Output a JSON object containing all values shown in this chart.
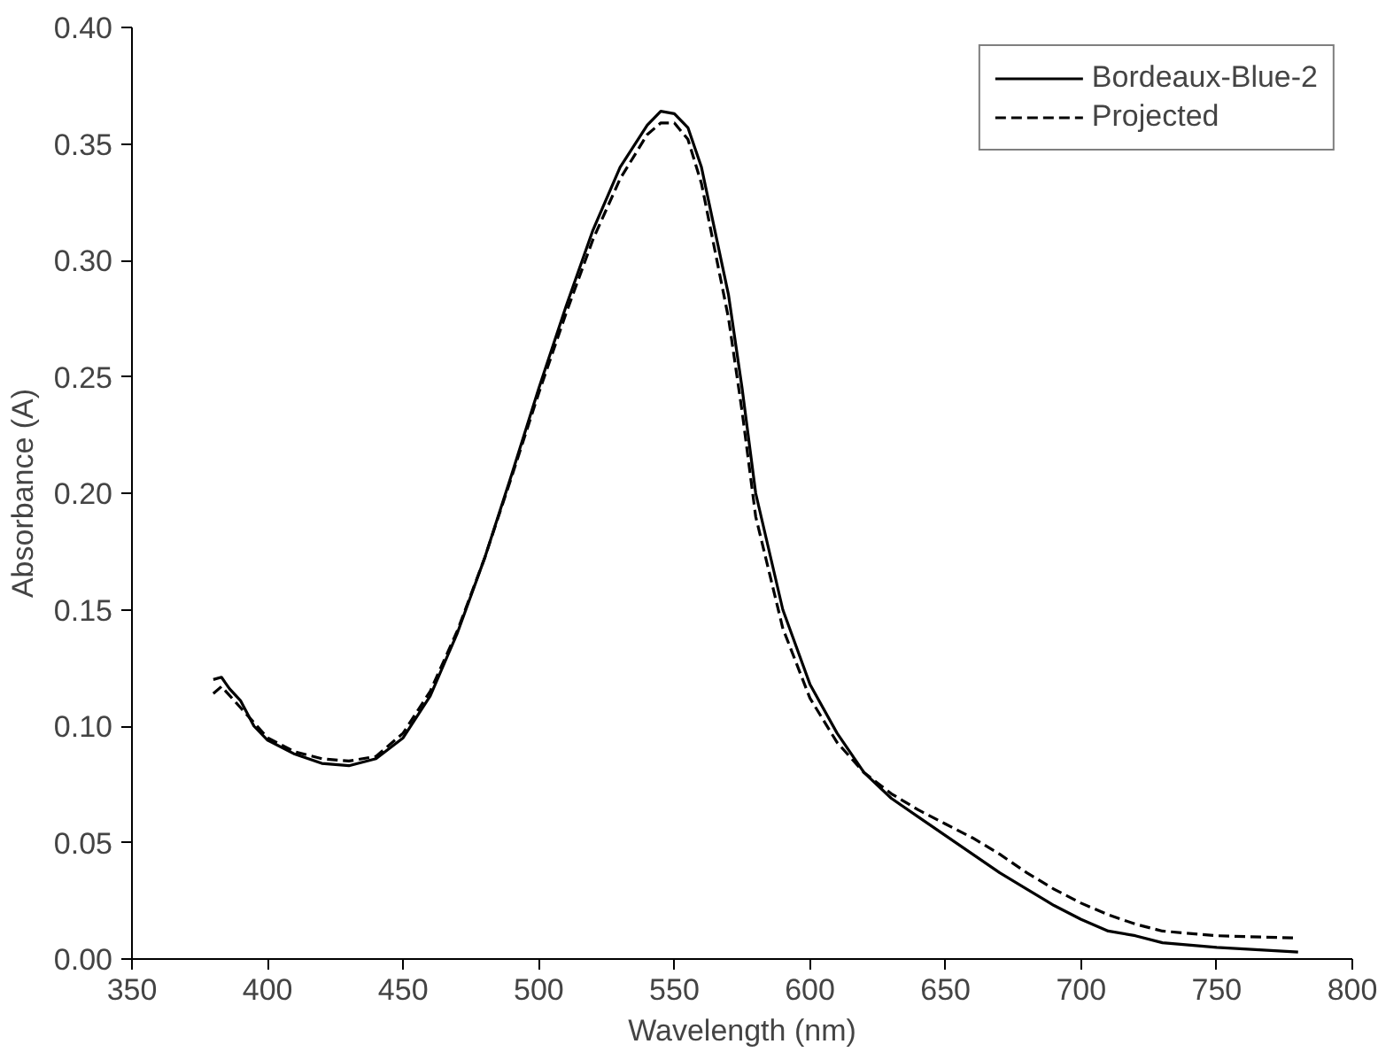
{
  "chart_data": {
    "type": "line",
    "xlabel": "Wavelength (nm)",
    "ylabel": "Absorbance (A)",
    "xlim": [
      350,
      800
    ],
    "xticks": [
      350,
      400,
      450,
      500,
      550,
      600,
      650,
      700,
      750,
      800
    ],
    "ylim": [
      0,
      0.4
    ],
    "yticks": [
      {
        "value": 0,
        "label": "0.00"
      },
      {
        "value": 0.05,
        "label": "0.05"
      },
      {
        "value": 0.1,
        "label": "0.10"
      },
      {
        "value": 0.15,
        "label": "0.15"
      },
      {
        "value": 0.2,
        "label": "0.20"
      },
      {
        "value": 0.25,
        "label": "0.25"
      },
      {
        "value": 0.3,
        "label": "0.30"
      },
      {
        "value": 0.35,
        "label": "0.35"
      },
      {
        "value": 0.4,
        "label": "0.40"
      }
    ],
    "grid": false,
    "legend": "top right",
    "marker": "none",
    "series": [
      {
        "name": "Bordeaux-Blue-2",
        "color": "#000000",
        "line_style": "solid",
        "x": [
          380,
          383,
          386,
          390,
          395,
          400,
          410,
          420,
          430,
          440,
          450,
          460,
          470,
          480,
          490,
          500,
          510,
          520,
          530,
          540,
          545,
          550,
          555,
          560,
          570,
          575,
          580,
          590,
          600,
          610,
          620,
          630,
          640,
          650,
          660,
          670,
          680,
          690,
          700,
          710,
          720,
          730,
          750,
          780
        ],
        "values": [
          0.12,
          0.121,
          0.116,
          0.111,
          0.1,
          0.094,
          0.088,
          0.084,
          0.083,
          0.086,
          0.095,
          0.113,
          0.14,
          0.172,
          0.208,
          0.245,
          0.28,
          0.313,
          0.34,
          0.358,
          0.364,
          0.363,
          0.357,
          0.34,
          0.285,
          0.245,
          0.2,
          0.15,
          0.118,
          0.097,
          0.08,
          0.069,
          0.061,
          0.053,
          0.045,
          0.037,
          0.03,
          0.023,
          0.017,
          0.012,
          0.01,
          0.007,
          0.005,
          0.003
        ]
      },
      {
        "name": "Projected",
        "color": "#000000",
        "line_style": "dashed",
        "x": [
          380,
          383,
          390,
          400,
          410,
          420,
          430,
          440,
          450,
          460,
          470,
          480,
          490,
          500,
          510,
          520,
          530,
          540,
          545,
          550,
          555,
          560,
          570,
          575,
          580,
          590,
          600,
          610,
          620,
          630,
          640,
          650,
          660,
          670,
          680,
          690,
          700,
          710,
          720,
          730,
          750,
          780
        ],
        "values": [
          0.114,
          0.117,
          0.108,
          0.095,
          0.089,
          0.086,
          0.085,
          0.087,
          0.097,
          0.115,
          0.141,
          0.172,
          0.207,
          0.243,
          0.277,
          0.309,
          0.335,
          0.354,
          0.359,
          0.359,
          0.352,
          0.333,
          0.275,
          0.235,
          0.19,
          0.142,
          0.112,
          0.093,
          0.08,
          0.071,
          0.064,
          0.058,
          0.052,
          0.045,
          0.037,
          0.03,
          0.024,
          0.019,
          0.015,
          0.012,
          0.01,
          0.009
        ]
      }
    ]
  }
}
